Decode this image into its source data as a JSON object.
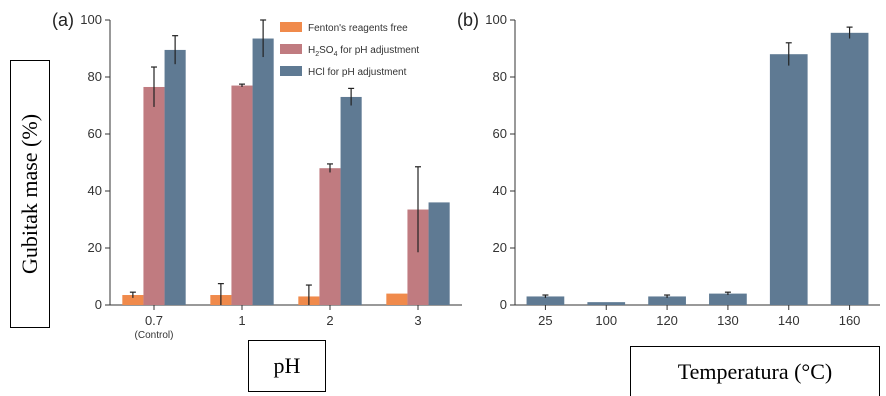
{
  "chart_data": [
    {
      "type": "bar",
      "panel_label": "(a)",
      "categories": [
        "0.7",
        "1",
        "2",
        "3"
      ],
      "category_sublabels": [
        "(Control)",
        "",
        "",
        ""
      ],
      "series": [
        {
          "name": "Fenton's reagents free",
          "color": "#f08a4b",
          "values": [
            3.5,
            3.5,
            3,
            4
          ],
          "errors": [
            1,
            4,
            4,
            0
          ]
        },
        {
          "name": "H2SO4 for pH adjustment",
          "name_main": "H",
          "name_sub": "2",
          "name_main2": "SO",
          "name_sub2": "4",
          "name_rest": " for pH adjustment",
          "color": "#c07b80",
          "values": [
            76.5,
            77,
            48,
            33.5
          ],
          "errors": [
            7,
            0.5,
            1.5,
            15
          ]
        },
        {
          "name": "HCl for pH adjustment",
          "color": "#5f7a93",
          "values": [
            89.5,
            93.5,
            73,
            36
          ],
          "errors": [
            5,
            6.5,
            3,
            0
          ]
        }
      ],
      "ylim": [
        0,
        100
      ],
      "yticks": [
        0,
        20,
        40,
        60,
        80,
        100
      ],
      "xlabel": "pH",
      "ylabel": "Gubitak mase (%)",
      "legend_position": "top-right"
    },
    {
      "type": "bar",
      "panel_label": "(b)",
      "categories": [
        "25",
        "100",
        "120",
        "130",
        "140",
        "160"
      ],
      "series": [
        {
          "color": "#5f7a93",
          "values": [
            3,
            1,
            3,
            4,
            88,
            95.5
          ],
          "errors": [
            0.5,
            0,
            0.5,
            0.5,
            4,
            2
          ]
        }
      ],
      "ylim": [
        0,
        100
      ],
      "yticks": [
        0,
        20,
        40,
        60,
        80,
        100
      ],
      "xlabel": "Temperatura (°C)"
    }
  ]
}
